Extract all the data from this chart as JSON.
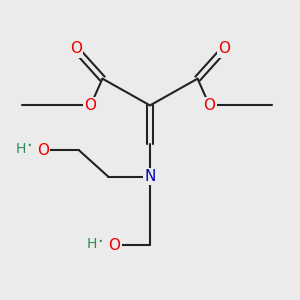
{
  "bg_color": "#ebebeb",
  "bond_color": "#222222",
  "atom_colors": {
    "O": "#ee0000",
    "N": "#0000bb",
    "H": "#2e8b57",
    "C": "#222222"
  },
  "font_size": 10,
  "lw": 1.5
}
